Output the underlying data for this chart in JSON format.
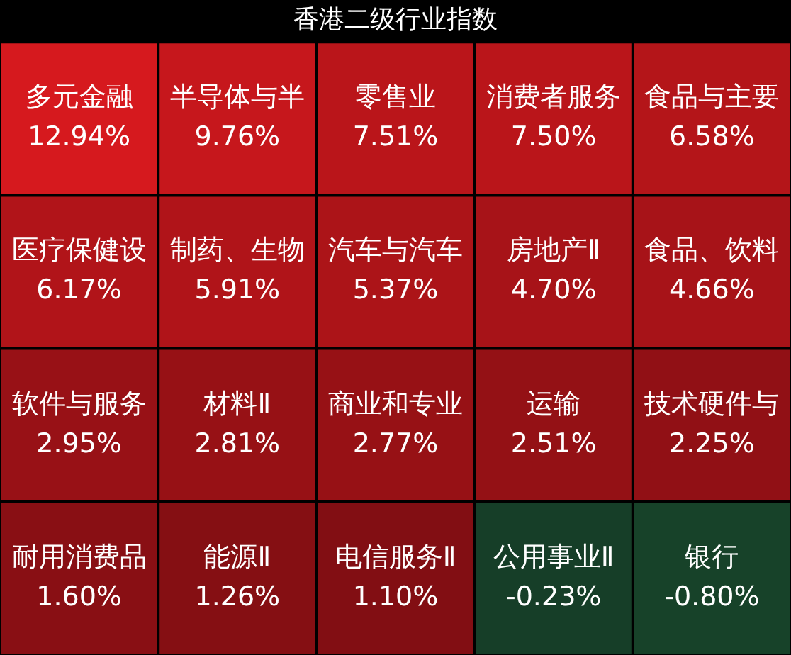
{
  "chart_data": {
    "type": "other",
    "title": "香港二级行业指数",
    "categories": [
      "多元金融",
      "半导体与半",
      "零售业",
      "消费者服务",
      "食品与主要",
      "医疗保健设",
      "制药、生物",
      "汽车与汽车",
      "房地产Ⅱ",
      "食品、饮料",
      "软件与服务",
      "材料Ⅱ",
      "商业和专业",
      "运输",
      "技术硬件与",
      "耐用消费品",
      "能源Ⅱ",
      "电信服务Ⅱ",
      "公用事业Ⅱ",
      "银行"
    ],
    "values": [
      12.94,
      9.76,
      7.51,
      7.5,
      6.58,
      6.17,
      5.91,
      5.37,
      4.7,
      4.66,
      2.95,
      2.81,
      2.77,
      2.51,
      2.25,
      1.6,
      1.26,
      1.1,
      -0.23,
      -0.8
    ],
    "value_labels": [
      "12.94%",
      "9.76%",
      "7.51%",
      "7.50%",
      "6.58%",
      "6.17%",
      "5.91%",
      "5.37%",
      "4.70%",
      "4.66%",
      "2.95%",
      "2.81%",
      "2.77%",
      "2.51%",
      "2.25%",
      "1.60%",
      "1.26%",
      "1.10%",
      "-0.23%",
      "-0.80%"
    ]
  }
}
